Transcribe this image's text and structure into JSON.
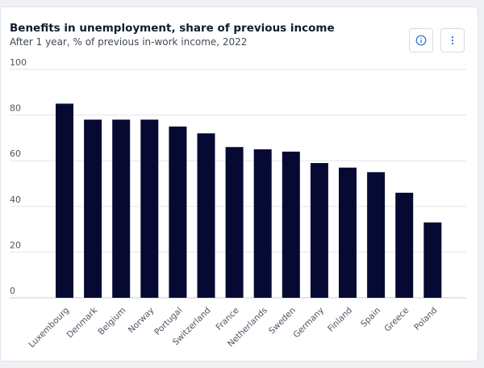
{
  "header": {
    "title": "Benefits in unemployment, share of previous income",
    "subtitle": "After 1 year, % of previous in-work income, 2022"
  },
  "toolbar": {
    "info_icon": "info-circle-icon",
    "more_icon": "vertical-ellipsis-icon"
  },
  "colors": {
    "bar": "#060a32",
    "grid": "#e3e6ea",
    "baseline": "#c9cdd3"
  },
  "chart_data": {
    "type": "bar",
    "categories": [
      "Luxembourg",
      "Denmark",
      "Belgium",
      "Norway",
      "Portugal",
      "Switzerland",
      "France",
      "Netherlands",
      "Sweden",
      "Germany",
      "Finland",
      "Spain",
      "Greece",
      "Poland"
    ],
    "values": [
      85,
      78,
      78,
      78,
      75,
      72,
      66,
      65,
      64,
      59,
      57,
      55,
      46,
      33
    ],
    "title": "Benefits in unemployment, share of previous income",
    "subtitle": "After 1 year, % of previous in-work income, 2022",
    "xlabel": "",
    "ylabel": "",
    "ylim": [
      0,
      100
    ],
    "yticks": [
      0,
      20,
      40,
      60,
      80,
      100
    ],
    "grid": true,
    "legend": "none"
  }
}
